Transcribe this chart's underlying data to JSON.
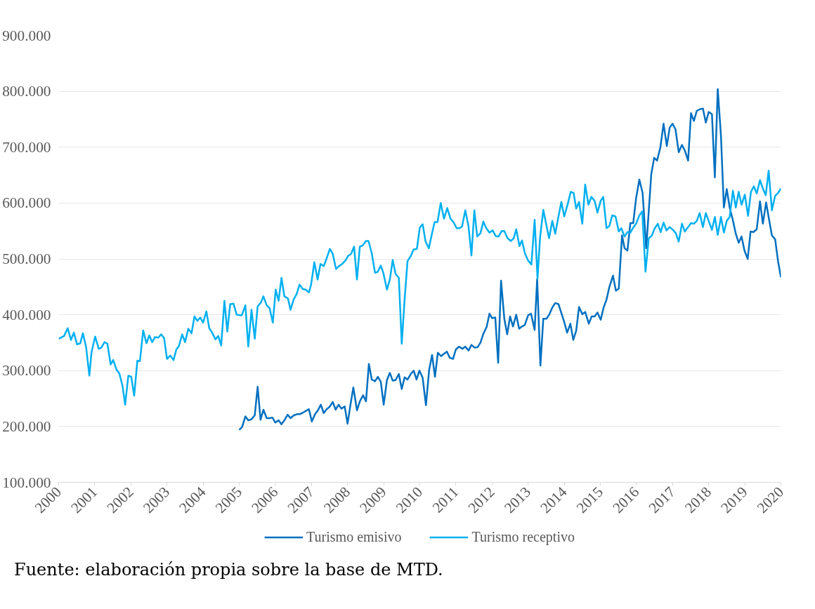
{
  "chart_data": {
    "type": "line",
    "xlim": [
      2000,
      2020
    ],
    "xticks": [
      2000,
      2001,
      2002,
      2003,
      2004,
      2005,
      2006,
      2007,
      2008,
      2009,
      2010,
      2011,
      2012,
      2013,
      2014,
      2015,
      2016,
      2017,
      2018,
      2019,
      2020
    ],
    "ylim": [
      100000,
      900000
    ],
    "yticks": [
      {
        "value": 100000,
        "label": "100.000"
      },
      {
        "value": 200000,
        "label": "200.000"
      },
      {
        "value": 300000,
        "label": "300.000"
      },
      {
        "value": 400000,
        "label": "400.000"
      },
      {
        "value": 500000,
        "label": "500.000"
      },
      {
        "value": 600000,
        "label": "600.000"
      },
      {
        "value": 700000,
        "label": "700.000"
      },
      {
        "value": 800000,
        "label": "800.000"
      },
      {
        "value": 900000,
        "label": "900.000"
      }
    ],
    "grid": "y",
    "legend": "bottom",
    "marker": "none",
    "line_style": "solid",
    "annotations": [
      "Fuente: elaboración propia sobre la base de MTD."
    ],
    "series": [
      {
        "name": "Turismo emisivo",
        "color": "#0070c0",
        "x": [
          2005.0,
          2005.08,
          2005.17,
          2005.25,
          2005.34,
          2005.43,
          2005.51,
          2005.59,
          2005.67,
          2005.76,
          2005.84,
          2005.92,
          2006.0,
          2006.09,
          2006.17,
          2006.25,
          2006.34,
          2006.42,
          2006.51,
          2006.6,
          2006.68,
          2006.77,
          2006.93,
          2007.01,
          2007.1,
          2007.18,
          2007.26,
          2007.34,
          2007.42,
          2007.5,
          2007.59,
          2007.67,
          2007.75,
          2007.83,
          2007.92,
          2008.0,
          2008.08,
          2008.16,
          2008.26,
          2008.34,
          2008.43,
          2008.51,
          2008.59,
          2008.67,
          2008.76,
          2008.84,
          2008.92,
          2009.0,
          2009.09,
          2009.17,
          2009.25,
          2009.33,
          2009.42,
          2009.5,
          2009.58,
          2009.66,
          2009.75,
          2009.83,
          2009.91,
          2009.99,
          2010.08,
          2010.17,
          2010.26,
          2010.34,
          2010.42,
          2010.5,
          2010.59,
          2010.67,
          2010.75,
          2010.83,
          2010.92,
          2011.0,
          2011.09,
          2011.18,
          2011.26,
          2011.35,
          2011.43,
          2011.52,
          2011.6,
          2011.68,
          2011.76,
          2011.85,
          2011.93,
          2012.0,
          2012.09,
          2012.17,
          2012.25,
          2012.34,
          2012.42,
          2012.5,
          2012.58,
          2012.67,
          2012.75,
          2012.83,
          2012.91,
          2013.0,
          2013.08,
          2013.18,
          2013.25,
          2013.34,
          2013.42,
          2013.51,
          2013.59,
          2013.67,
          2013.75,
          2013.84,
          2013.92,
          2014.0,
          2014.08,
          2014.17,
          2014.25,
          2014.33,
          2014.41,
          2014.5,
          2014.58,
          2014.68,
          2014.76,
          2014.84,
          2014.92,
          2015.01,
          2015.09,
          2015.17,
          2015.25,
          2015.35,
          2015.43,
          2015.51,
          2015.6,
          2015.67,
          2015.75,
          2015.83,
          2015.91,
          2015.99,
          2016.08,
          2016.17,
          2016.27,
          2016.41,
          2016.49,
          2016.57,
          2016.66,
          2016.75,
          2016.84,
          2016.92,
          2017.0,
          2017.08,
          2017.17,
          2017.26,
          2017.34,
          2017.43,
          2017.51,
          2017.59,
          2017.67,
          2017.76,
          2017.84,
          2017.92,
          2018.0,
          2018.09,
          2018.17,
          2018.25,
          2018.34,
          2018.42,
          2018.5,
          2018.58,
          2018.67,
          2018.75,
          2018.83,
          2018.91,
          2018.99,
          2019.08,
          2019.16,
          2019.24,
          2019.33,
          2019.42,
          2019.5,
          2019.59,
          2019.67,
          2019.75,
          2019.84,
          2019.92,
          2020.0
        ],
        "values": [
          194000,
          199000,
          218000,
          211000,
          213000,
          220000,
          271000,
          212000,
          230000,
          215000,
          215000,
          216000,
          207000,
          211000,
          204000,
          211000,
          221000,
          215000,
          220000,
          222000,
          222000,
          225000,
          231000,
          209000,
          222000,
          229000,
          239000,
          224000,
          231000,
          235000,
          244000,
          230000,
          239000,
          232000,
          236000,
          205000,
          239000,
          270000,
          229000,
          245000,
          256000,
          245000,
          312000,
          284000,
          281000,
          289000,
          280000,
          239000,
          283000,
          296000,
          282000,
          283000,
          294000,
          267000,
          288000,
          284000,
          294000,
          300000,
          284000,
          300000,
          287000,
          238000,
          302000,
          328000,
          289000,
          332000,
          326000,
          330000,
          334000,
          323000,
          321000,
          338000,
          343000,
          339000,
          343000,
          336000,
          346000,
          341000,
          342000,
          350000,
          366000,
          378000,
          402000,
          394000,
          395000,
          314000,
          461000,
          393000,
          365000,
          397000,
          379000,
          400000,
          375000,
          379000,
          382000,
          399000,
          402000,
          373000,
          464000,
          309000,
          393000,
          393000,
          401000,
          413000,
          421000,
          419000,
          403000,
          387000,
          368000,
          384000,
          355000,
          371000,
          414000,
          401000,
          405000,
          384000,
          397000,
          397000,
          404000,
          391000,
          413000,
          427000,
          450000,
          470000,
          443000,
          447000,
          542000,
          519000,
          515000,
          564000,
          564000,
          609000,
          642000,
          618000,
          519000,
          652000,
          681000,
          676000,
          699000,
          742000,
          702000,
          735000,
          742000,
          732000,
          691000,
          704000,
          694000,
          676000,
          761000,
          747000,
          765000,
          768000,
          769000,
          744000,
          763000,
          759000,
          646000,
          804000,
          720000,
          592000,
          625000,
          592000,
          569000,
          545000,
          529000,
          540000,
          515000,
          500000,
          549000,
          548000,
          553000,
          603000,
          563000,
          601000,
          571000,
          542000,
          535000,
          496000,
          467000
        ]
      },
      {
        "name": "Turismo receptivo",
        "color": "#00b0f0",
        "x": [
          2000.0,
          2000.15,
          2000.25,
          2000.34,
          2000.42,
          2000.51,
          2000.6,
          2000.67,
          2000.76,
          2000.85,
          2000.91,
          2001.01,
          2001.11,
          2001.18,
          2001.27,
          2001.35,
          2001.44,
          2001.51,
          2001.6,
          2001.68,
          2001.77,
          2001.84,
          2001.93,
          2002.01,
          2002.09,
          2002.18,
          2002.25,
          2002.34,
          2002.43,
          2002.51,
          2002.59,
          2002.67,
          2002.76,
          2002.84,
          2002.92,
          2003.0,
          2003.09,
          2003.18,
          2003.26,
          2003.33,
          2003.42,
          2003.5,
          2003.59,
          2003.68,
          2003.76,
          2003.84,
          2003.92,
          2004.0,
          2004.09,
          2004.17,
          2004.25,
          2004.34,
          2004.42,
          2004.5,
          2004.59,
          2004.67,
          2004.75,
          2004.84,
          2004.93,
          2005.07,
          2005.17,
          2005.25,
          2005.34,
          2005.43,
          2005.51,
          2005.6,
          2005.67,
          2005.76,
          2005.84,
          2005.93,
          2006.01,
          2006.09,
          2006.17,
          2006.25,
          2006.35,
          2006.42,
          2006.51,
          2006.59,
          2006.67,
          2006.76,
          2006.84,
          2006.93,
          2006.99,
          2007.08,
          2007.17,
          2007.25,
          2007.34,
          2007.42,
          2007.51,
          2007.59,
          2007.68,
          2007.76,
          2007.85,
          2007.94,
          2008.01,
          2008.1,
          2008.18,
          2008.26,
          2008.34,
          2008.42,
          2008.51,
          2008.58,
          2008.67,
          2008.76,
          2008.84,
          2008.92,
          2008.99,
          2009.09,
          2009.17,
          2009.25,
          2009.33,
          2009.42,
          2009.5,
          2009.58,
          2009.66,
          2009.75,
          2009.83,
          2009.92,
          2010.0,
          2010.08,
          2010.16,
          2010.25,
          2010.33,
          2010.41,
          2010.49,
          2010.58,
          2010.67,
          2010.76,
          2010.85,
          2010.93,
          2011.02,
          2011.1,
          2011.17,
          2011.26,
          2011.35,
          2011.43,
          2011.51,
          2011.59,
          2011.68,
          2011.76,
          2011.84,
          2011.93,
          2012.02,
          2012.1,
          2012.18,
          2012.27,
          2012.34,
          2012.43,
          2012.52,
          2012.6,
          2012.67,
          2012.76,
          2012.83,
          2012.91,
          2013.0,
          2013.09,
          2013.18,
          2013.26,
          2013.33,
          2013.42,
          2013.5,
          2013.58,
          2013.67,
          2013.75,
          2013.84,
          2013.92,
          2014.0,
          2014.1,
          2014.18,
          2014.26,
          2014.33,
          2014.41,
          2014.5,
          2014.58,
          2014.67,
          2014.75,
          2014.84,
          2014.92,
          2015.01,
          2015.08,
          2015.17,
          2015.25,
          2015.33,
          2015.42,
          2015.51,
          2015.58,
          2015.67,
          2015.75,
          2015.83,
          2015.91,
          2015.99,
          2016.08,
          2016.16,
          2016.25,
          2016.34,
          2016.42,
          2016.5,
          2016.59,
          2016.67,
          2016.75,
          2016.83,
          2016.92,
          2017.01,
          2017.09,
          2017.17,
          2017.26,
          2017.34,
          2017.43,
          2017.51,
          2017.59,
          2017.67,
          2017.75,
          2017.84,
          2017.92,
          2018.0,
          2018.09,
          2018.17,
          2018.25,
          2018.34,
          2018.42,
          2018.5,
          2018.58,
          2018.67,
          2018.75,
          2018.83,
          2018.91,
          2019.0,
          2019.09,
          2019.17,
          2019.25,
          2019.33,
          2019.42,
          2019.5,
          2019.58,
          2019.66,
          2019.75,
          2019.84,
          2019.92,
          2020.0
        ],
        "values": [
          357000,
          362000,
          376000,
          355000,
          368000,
          347000,
          349000,
          367000,
          342000,
          291000,
          333000,
          361000,
          339000,
          341000,
          351000,
          348000,
          311000,
          319000,
          302000,
          295000,
          272000,
          239000,
          291000,
          289000,
          255000,
          318000,
          317000,
          372000,
          349000,
          363000,
          351000,
          360000,
          359000,
          365000,
          358000,
          321000,
          327000,
          319000,
          338000,
          344000,
          365000,
          351000,
          375000,
          367000,
          397000,
          389000,
          395000,
          386000,
          406000,
          376000,
          368000,
          356000,
          362000,
          345000,
          425000,
          370000,
          419000,
          420000,
          400000,
          399000,
          417000,
          343000,
          409000,
          357000,
          415000,
          422000,
          433000,
          417000,
          412000,
          386000,
          445000,
          425000,
          466000,
          433000,
          429000,
          409000,
          428000,
          437000,
          454000,
          446000,
          445000,
          440000,
          454000,
          494000,
          463000,
          491000,
          487000,
          501000,
          518000,
          509000,
          482000,
          487000,
          491000,
          497000,
          505000,
          509000,
          522000,
          463000,
          522000,
          524000,
          532000,
          532000,
          510000,
          475000,
          477000,
          488000,
          475000,
          445000,
          463000,
          498000,
          473000,
          466000,
          348000,
          428000,
          496000,
          505000,
          517000,
          518000,
          556000,
          562000,
          531000,
          519000,
          543000,
          566000,
          566000,
          600000,
          572000,
          591000,
          572000,
          566000,
          555000,
          555000,
          558000,
          587000,
          558000,
          506000,
          587000,
          540000,
          546000,
          567000,
          555000,
          547000,
          551000,
          541000,
          540000,
          550000,
          550000,
          537000,
          532000,
          537000,
          553000,
          523000,
          533000,
          510000,
          497000,
          490000,
          570000,
          465000,
          538000,
          588000,
          562000,
          537000,
          568000,
          545000,
          576000,
          602000,
          576000,
          599000,
          620000,
          618000,
          590000,
          602000,
          563000,
          633000,
          597000,
          611000,
          604000,
          583000,
          604000,
          611000,
          555000,
          559000,
          578000,
          576000,
          549000,
          555000,
          540000,
          548000,
          547000,
          556000,
          563000,
          578000,
          585000,
          477000,
          537000,
          541000,
          554000,
          563000,
          548000,
          565000,
          551000,
          557000,
          552000,
          546000,
          531000,
          563000,
          549000,
          557000,
          564000,
          563000,
          568000,
          582000,
          557000,
          582000,
          568000,
          552000,
          575000,
          543000,
          575000,
          547000,
          568000,
          575000,
          622000,
          592000,
          620000,
          597000,
          615000,
          577000,
          620000,
          630000,
          617000,
          641000,
          626000,
          614000,
          658000,
          587000,
          613000,
          618000,
          626000
        ]
      }
    ]
  }
}
